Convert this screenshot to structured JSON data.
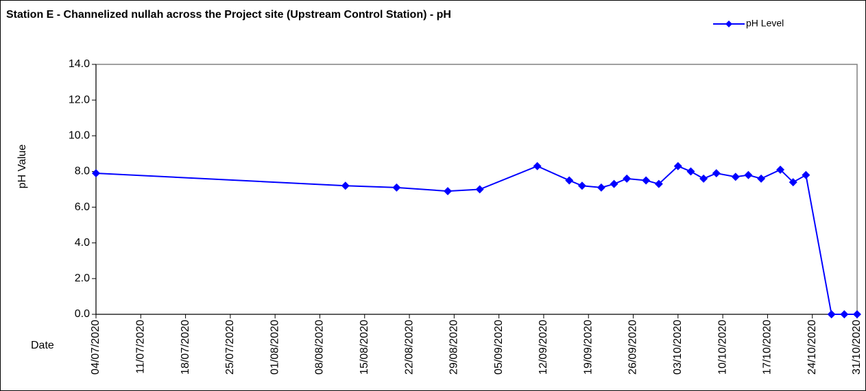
{
  "chart_data": {
    "type": "line",
    "title": "Station E - Channelized nullah across the Project site (Upstream Control Station) - pH",
    "y_label": "pH Value",
    "x_label": "Date",
    "x": [
      "2020-07-04",
      "2020-08-12",
      "2020-08-20",
      "2020-08-28",
      "2020-09-02",
      "2020-09-11",
      "2020-09-16",
      "2020-09-18",
      "2020-09-21",
      "2020-09-23",
      "2020-09-25",
      "2020-09-28",
      "2020-09-30",
      "2020-10-03",
      "2020-10-05",
      "2020-10-07",
      "2020-10-09",
      "2020-10-12",
      "2020-10-14",
      "2020-10-16",
      "2020-10-19",
      "2020-10-21",
      "2020-10-23",
      "2020-10-27",
      "2020-10-29",
      "2020-10-31"
    ],
    "series": [
      {
        "name": "pH Level",
        "color": "#0000ff",
        "values": [
          7.9,
          7.2,
          7.1,
          6.9,
          7.0,
          8.3,
          7.5,
          7.2,
          7.1,
          7.3,
          7.6,
          7.5,
          7.3,
          8.3,
          8.0,
          7.6,
          7.9,
          7.7,
          7.8,
          7.6,
          8.1,
          7.4,
          7.8,
          0,
          0,
          0
        ]
      }
    ],
    "xlim": [
      "2020-07-04",
      "2020-10-31"
    ],
    "xticks": [
      {
        "value": "2020-07-04",
        "label": "04/07/2020"
      },
      {
        "value": "2020-07-11",
        "label": "11/07/2020"
      },
      {
        "value": "2020-07-18",
        "label": "18/07/2020"
      },
      {
        "value": "2020-07-25",
        "label": "25/07/2020"
      },
      {
        "value": "2020-08-01",
        "label": "01/08/2020"
      },
      {
        "value": "2020-08-08",
        "label": "08/08/2020"
      },
      {
        "value": "2020-08-15",
        "label": "15/08/2020"
      },
      {
        "value": "2020-08-22",
        "label": "22/08/2020"
      },
      {
        "value": "2020-08-29",
        "label": "29/08/2020"
      },
      {
        "value": "2020-09-05",
        "label": "05/09/2020"
      },
      {
        "value": "2020-09-12",
        "label": "12/09/2020"
      },
      {
        "value": "2020-09-19",
        "label": "19/09/2020"
      },
      {
        "value": "2020-09-26",
        "label": "26/09/2020"
      },
      {
        "value": "2020-10-03",
        "label": "03/10/2020"
      },
      {
        "value": "2020-10-10",
        "label": "10/10/2020"
      },
      {
        "value": "2020-10-17",
        "label": "17/10/2020"
      },
      {
        "value": "2020-10-24",
        "label": "24/10/2020"
      },
      {
        "value": "2020-10-31",
        "label": "31/10/2020"
      }
    ],
    "ylim": [
      0,
      14
    ],
    "yticks": [
      {
        "value": 0,
        "label": "0.0"
      },
      {
        "value": 2,
        "label": "2.0"
      },
      {
        "value": 4,
        "label": "4.0"
      },
      {
        "value": 6,
        "label": "6.0"
      },
      {
        "value": 8,
        "label": "8.0"
      },
      {
        "value": 10,
        "label": "10.0"
      },
      {
        "value": 12,
        "label": "12.0"
      },
      {
        "value": 14,
        "label": "14.0"
      }
    ],
    "legend": "top-right"
  }
}
